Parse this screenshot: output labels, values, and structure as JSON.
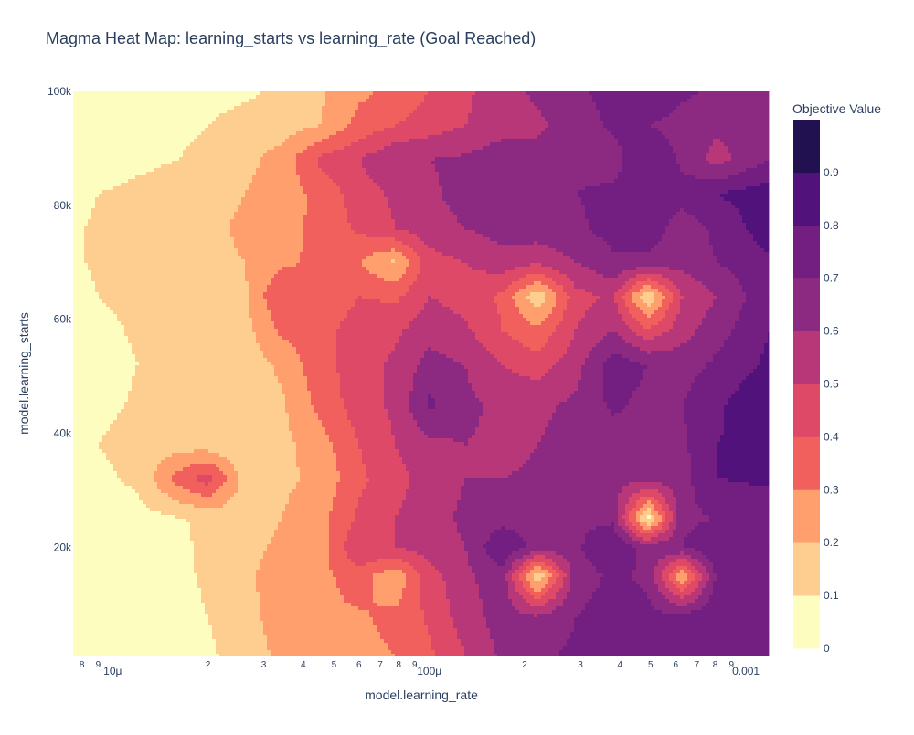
{
  "chart_data": {
    "type": "heatmap",
    "subtype": "filled-contour",
    "title": "Magma Heat Map: learning_starts vs learning_rate (Goal Reached)",
    "xlabel": "model.learning_rate",
    "ylabel": "model.learning_starts",
    "x_scale": "log",
    "xlim": [
      7.5e-06,
      0.00118
    ],
    "ylim": [
      1000,
      100000
    ],
    "colorbar_title": "Objective Value",
    "colorscale": "Magma (reversed)",
    "zlim": [
      0,
      1
    ],
    "contour_step": 0.1,
    "colors": [
      "#fcfdbf",
      "#fece91",
      "#fe9f6d",
      "#f1605d",
      "#de4968",
      "#b73779",
      "#8c2981",
      "#721f81",
      "#51127c",
      "#221150",
      "#000004"
    ],
    "x_ticks": [
      {
        "value": 8e-06,
        "label": "8",
        "minor": true
      },
      {
        "value": 9e-06,
        "label": "9",
        "minor": true
      },
      {
        "value": 1e-05,
        "label": "10μ",
        "minor": false
      },
      {
        "value": 2e-05,
        "label": "2",
        "minor": true
      },
      {
        "value": 3e-05,
        "label": "3",
        "minor": true
      },
      {
        "value": 4e-05,
        "label": "4",
        "minor": true
      },
      {
        "value": 5e-05,
        "label": "5",
        "minor": true
      },
      {
        "value": 6e-05,
        "label": "6",
        "minor": true
      },
      {
        "value": 7e-05,
        "label": "7",
        "minor": true
      },
      {
        "value": 8e-05,
        "label": "8",
        "minor": true
      },
      {
        "value": 9e-05,
        "label": "9",
        "minor": true
      },
      {
        "value": 0.0001,
        "label": "100μ",
        "minor": false
      },
      {
        "value": 0.0002,
        "label": "2",
        "minor": true
      },
      {
        "value": 0.0003,
        "label": "3",
        "minor": true
      },
      {
        "value": 0.0004,
        "label": "4",
        "minor": true
      },
      {
        "value": 0.0005,
        "label": "5",
        "minor": true
      },
      {
        "value": 0.0006,
        "label": "6",
        "minor": true
      },
      {
        "value": 0.0007,
        "label": "7",
        "minor": true
      },
      {
        "value": 0.0008,
        "label": "8",
        "minor": true
      },
      {
        "value": 0.0009,
        "label": "9",
        "minor": true
      },
      {
        "value": 0.001,
        "label": "0.001",
        "minor": false
      }
    ],
    "y_ticks": [
      {
        "value": 20000,
        "label": "20k"
      },
      {
        "value": 40000,
        "label": "40k"
      },
      {
        "value": 60000,
        "label": "60k"
      },
      {
        "value": 80000,
        "label": "80k"
      },
      {
        "value": 100000,
        "label": "100k"
      }
    ],
    "colorbar_ticks": [
      {
        "value": 0,
        "label": "0"
      },
      {
        "value": 0.1,
        "label": "0.1"
      },
      {
        "value": 0.2,
        "label": "0.2"
      },
      {
        "value": 0.3,
        "label": "0.3"
      },
      {
        "value": 0.4,
        "label": "0.4"
      },
      {
        "value": 0.5,
        "label": "0.5"
      },
      {
        "value": 0.6,
        "label": "0.6"
      },
      {
        "value": 0.7,
        "label": "0.7"
      },
      {
        "value": 0.8,
        "label": "0.8"
      },
      {
        "value": 0.9,
        "label": "0.9"
      }
    ],
    "x": [
      7.5e-06,
      9e-06,
      1.2e-05,
      1.6e-05,
      2e-05,
      2.6e-05,
      3.4e-05,
      4.5e-05,
      6e-05,
      7.8e-05,
      0.0001,
      0.00013,
      0.00017,
      0.00022,
      0.00029,
      0.00038,
      0.00049,
      0.00063,
      0.00081,
      0.00118
    ],
    "y": [
      1000,
      8000,
      15000,
      20000,
      25000,
      32000,
      38000,
      45000,
      52000,
      58000,
      64000,
      70000,
      76000,
      82000,
      88000,
      94000,
      100000
    ],
    "z": [
      [
        0.02,
        0.02,
        0.03,
        0.05,
        0.08,
        0.15,
        0.22,
        0.27,
        0.28,
        0.3,
        0.38,
        0.5,
        0.62,
        0.68,
        0.72,
        0.74,
        0.72,
        0.74,
        0.8,
        0.72
      ],
      [
        0.02,
        0.02,
        0.04,
        0.06,
        0.1,
        0.17,
        0.24,
        0.28,
        0.29,
        0.32,
        0.42,
        0.55,
        0.65,
        0.6,
        0.7,
        0.74,
        0.73,
        0.72,
        0.78,
        0.74
      ],
      [
        0.02,
        0.03,
        0.04,
        0.07,
        0.12,
        0.18,
        0.24,
        0.27,
        0.35,
        0.22,
        0.45,
        0.58,
        0.66,
        0.1,
        0.65,
        0.72,
        0.68,
        0.2,
        0.72,
        0.7
      ],
      [
        0.03,
        0.03,
        0.05,
        0.08,
        0.12,
        0.17,
        0.22,
        0.25,
        0.5,
        0.5,
        0.55,
        0.6,
        0.8,
        0.66,
        0.68,
        0.8,
        0.66,
        0.7,
        0.8,
        0.72
      ],
      [
        0.03,
        0.04,
        0.06,
        0.09,
        0.12,
        0.15,
        0.2,
        0.26,
        0.42,
        0.5,
        0.56,
        0.62,
        0.66,
        0.67,
        0.68,
        0.68,
        0.05,
        0.68,
        0.7,
        0.72
      ],
      [
        0.05,
        0.08,
        0.12,
        0.34,
        0.45,
        0.16,
        0.18,
        0.22,
        0.38,
        0.46,
        0.55,
        0.6,
        0.6,
        0.61,
        0.62,
        0.63,
        0.62,
        0.66,
        0.8,
        0.82
      ],
      [
        0.05,
        0.1,
        0.13,
        0.16,
        0.15,
        0.1,
        0.17,
        0.25,
        0.4,
        0.5,
        0.58,
        0.6,
        0.58,
        0.6,
        0.63,
        0.65,
        0.64,
        0.68,
        0.8,
        0.83
      ],
      [
        0.04,
        0.08,
        0.11,
        0.13,
        0.12,
        0.12,
        0.18,
        0.33,
        0.45,
        0.52,
        0.72,
        0.62,
        0.58,
        0.58,
        0.62,
        0.72,
        0.67,
        0.7,
        0.78,
        0.9
      ],
      [
        0.04,
        0.07,
        0.1,
        0.12,
        0.13,
        0.14,
        0.22,
        0.36,
        0.45,
        0.52,
        0.64,
        0.6,
        0.5,
        0.45,
        0.56,
        0.76,
        0.7,
        0.66,
        0.72,
        0.82
      ],
      [
        0.04,
        0.08,
        0.11,
        0.13,
        0.14,
        0.16,
        0.32,
        0.36,
        0.45,
        0.48,
        0.56,
        0.52,
        0.4,
        0.32,
        0.5,
        0.6,
        0.42,
        0.56,
        0.66,
        0.8
      ],
      [
        0.05,
        0.1,
        0.12,
        0.14,
        0.15,
        0.18,
        0.4,
        0.32,
        0.4,
        0.38,
        0.5,
        0.46,
        0.38,
        0.12,
        0.46,
        0.52,
        0.1,
        0.5,
        0.6,
        0.78
      ],
      [
        0.08,
        0.12,
        0.14,
        0.15,
        0.17,
        0.2,
        0.28,
        0.32,
        0.3,
        0.18,
        0.46,
        0.5,
        0.56,
        0.52,
        0.6,
        0.68,
        0.68,
        0.64,
        0.7,
        0.78
      ],
      [
        0.08,
        0.12,
        0.14,
        0.15,
        0.17,
        0.22,
        0.27,
        0.32,
        0.42,
        0.5,
        0.56,
        0.6,
        0.64,
        0.66,
        0.68,
        0.74,
        0.76,
        0.65,
        0.72,
        0.86
      ],
      [
        0.06,
        0.1,
        0.12,
        0.14,
        0.16,
        0.2,
        0.24,
        0.33,
        0.45,
        0.52,
        0.58,
        0.64,
        0.66,
        0.68,
        0.7,
        0.72,
        0.74,
        0.74,
        0.8,
        0.86
      ],
      [
        0.03,
        0.06,
        0.08,
        0.1,
        0.12,
        0.17,
        0.24,
        0.42,
        0.5,
        0.6,
        0.6,
        0.62,
        0.66,
        0.64,
        0.68,
        0.66,
        0.8,
        0.68,
        0.56,
        0.7
      ],
      [
        0.02,
        0.04,
        0.06,
        0.08,
        0.1,
        0.14,
        0.15,
        0.2,
        0.33,
        0.4,
        0.45,
        0.5,
        0.56,
        0.58,
        0.64,
        0.72,
        0.7,
        0.66,
        0.62,
        0.68
      ],
      [
        0.02,
        0.03,
        0.04,
        0.05,
        0.06,
        0.08,
        0.12,
        0.18,
        0.28,
        0.32,
        0.4,
        0.48,
        0.56,
        0.62,
        0.68,
        0.74,
        0.8,
        0.72,
        0.68,
        0.66
      ]
    ]
  }
}
